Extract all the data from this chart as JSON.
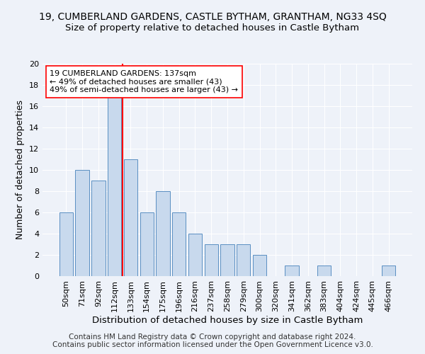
{
  "title": "19, CUMBERLAND GARDENS, CASTLE BYTHAM, GRANTHAM, NG33 4SQ",
  "subtitle": "Size of property relative to detached houses in Castle Bytham",
  "xlabel": "Distribution of detached houses by size in Castle Bytham",
  "ylabel": "Number of detached properties",
  "categories": [
    "50sqm",
    "71sqm",
    "92sqm",
    "112sqm",
    "133sqm",
    "154sqm",
    "175sqm",
    "196sqm",
    "216sqm",
    "237sqm",
    "258sqm",
    "279sqm",
    "300sqm",
    "320sqm",
    "341sqm",
    "362sqm",
    "383sqm",
    "404sqm",
    "424sqm",
    "445sqm",
    "466sqm"
  ],
  "values": [
    6,
    10,
    9,
    17,
    11,
    6,
    8,
    6,
    4,
    3,
    3,
    3,
    2,
    0,
    1,
    0,
    1,
    0,
    0,
    0,
    1
  ],
  "bar_color": "#c8d9ed",
  "bar_edge_color": "#5a8fc2",
  "marker_index": 4,
  "marker_label_line1": "19 CUMBERLAND GARDENS: 137sqm",
  "marker_label_line2": "← 49% of detached houses are smaller (43)",
  "marker_label_line3": "49% of semi-detached houses are larger (43) →",
  "marker_line_color": "red",
  "annotation_box_color": "white",
  "annotation_box_edge_color": "red",
  "ylim": [
    0,
    20
  ],
  "yticks": [
    0,
    2,
    4,
    6,
    8,
    10,
    12,
    14,
    16,
    18,
    20
  ],
  "title_fontsize": 10,
  "subtitle_fontsize": 9.5,
  "xlabel_fontsize": 9.5,
  "ylabel_fontsize": 9,
  "tick_fontsize": 8,
  "annotation_fontsize": 8,
  "footer": "Contains HM Land Registry data © Crown copyright and database right 2024.\nContains public sector information licensed under the Open Government Licence v3.0.",
  "background_color": "#eef2f9",
  "grid_color": "white"
}
